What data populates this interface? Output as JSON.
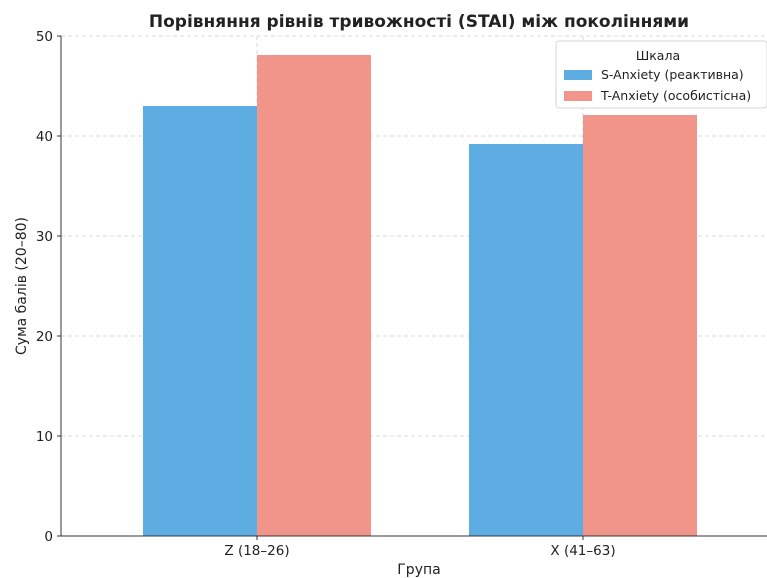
{
  "chart_data": {
    "type": "bar",
    "title": "Порівняння рівнів тривожності (STAI) між поколіннями",
    "xlabel": "Група",
    "ylabel": "Сума балів (20–80)",
    "categories": [
      "Z (18–26)",
      "X (41–63)"
    ],
    "series": [
      {
        "name": "S-Anxiety (реактивна)",
        "values": [
          43,
          39.2
        ],
        "color": "#5DADE2"
      },
      {
        "name": "T-Anxiety (особистісна)",
        "values": [
          48.1,
          42.1
        ],
        "color": "#F1948A"
      }
    ],
    "ylim": [
      0,
      50
    ],
    "yticks": [
      0,
      10,
      20,
      30,
      40,
      50
    ],
    "grid": true,
    "legend": {
      "title": "Шкала",
      "placement": "top-right"
    }
  }
}
